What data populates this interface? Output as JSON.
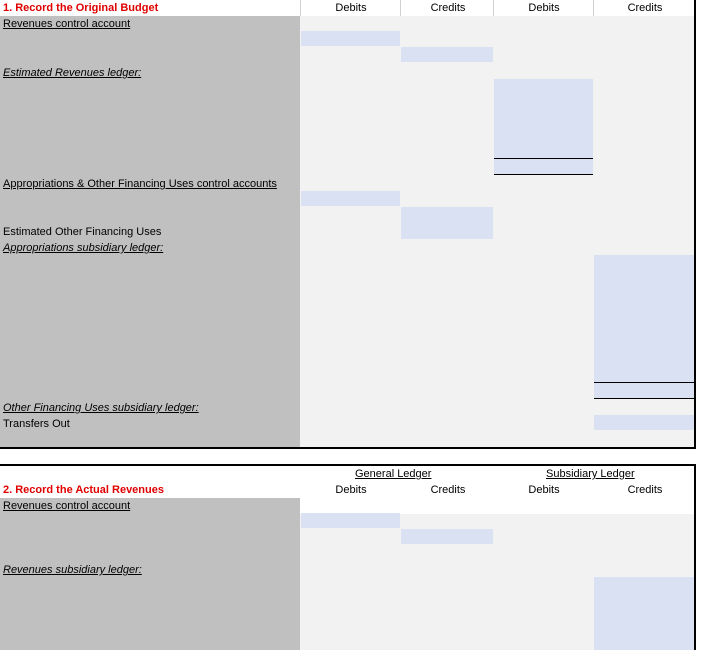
{
  "section1": {
    "title": "1. Record the Original Budget",
    "headers": {
      "gl_debits": "Debits",
      "gl_credits": "Credits",
      "sl_debits": "Debits",
      "sl_credits": "Credits"
    },
    "rows": {
      "revenues_control": "Revenues control account",
      "estimated_revenues_ledger": "Estimated Revenues ledger:",
      "appropriations_control": "Appropriations & Other Financing Uses control accounts",
      "estimated_ofu": "Estimated Other Financing Uses",
      "appropriations_subsidiary": "Appropriations subsidiary ledger:",
      "ofu_subsidiary": "Other Financing Uses subsidiary ledger:",
      "transfers_out": "Transfers Out"
    }
  },
  "section2": {
    "title": "2. Record the Actual Revenues",
    "group_headers": {
      "general_ledger": "General Ledger",
      "subsidiary_ledger": "Subsidiary Ledger"
    },
    "headers": {
      "gl_debits": "Debits",
      "gl_credits": "Credits",
      "sl_debits": "Debits",
      "sl_credits": "Credits"
    },
    "rows": {
      "revenues_control": "Revenues control account",
      "revenues_subsidiary": "Revenues subsidiary ledger:"
    }
  }
}
